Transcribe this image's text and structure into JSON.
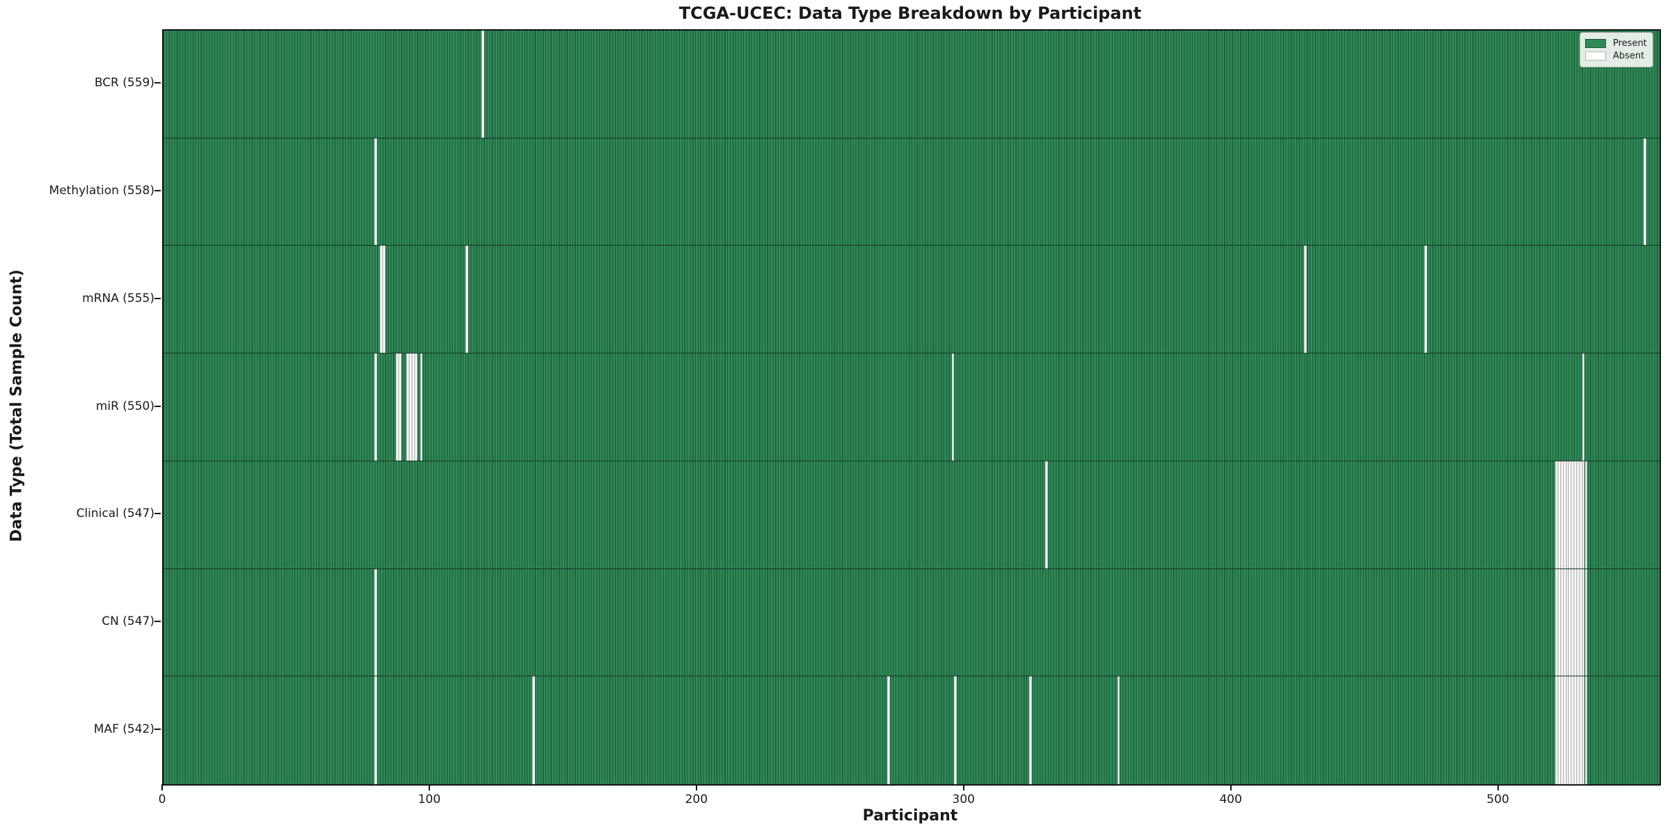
{
  "title": "TCGA-UCEC: Data Type Breakdown by Participant",
  "xlabel": "Participant",
  "ylabel": "Data Type (Total Sample Count)",
  "legend": {
    "present_label": "Present",
    "absent_label": "Absent"
  },
  "colors": {
    "present": "#2e8b57",
    "present_edge": "#1d5535",
    "absent": "#ffffff",
    "absent_edge": "#c9c9c9"
  },
  "chart_data": {
    "type": "heatmap",
    "title": "TCGA-UCEC: Data Type Breakdown by Participant",
    "xlabel": "Participant",
    "ylabel": "Data Type (Total Sample Count)",
    "legend_entries": [
      "Present",
      "Absent"
    ],
    "legend_position": "upper right",
    "n_participants": 560,
    "x_range": [
      0,
      560
    ],
    "x_ticks": [
      0,
      100,
      200,
      300,
      400,
      500
    ],
    "rows": [
      {
        "name": "BCR",
        "label": "BCR (559)",
        "total": 559,
        "absent_participants": [
          119
        ]
      },
      {
        "name": "Methylation",
        "label": "Methylation (558)",
        "total": 558,
        "absent_participants": [
          79,
          554
        ]
      },
      {
        "name": "mRNA",
        "label": "mRNA (555)",
        "total": 555,
        "absent_participants": [
          81,
          82,
          113,
          427,
          472
        ]
      },
      {
        "name": "miR",
        "label": "miR (550)",
        "total": 550,
        "absent_participants": [
          79,
          87,
          88,
          91,
          92,
          93,
          94,
          96,
          295,
          531
        ]
      },
      {
        "name": "Clinical",
        "label": "Clinical (547)",
        "total": 547,
        "absent_participants": [
          330,
          521,
          522,
          523,
          524,
          525,
          526,
          527,
          528,
          529,
          530,
          531,
          532
        ]
      },
      {
        "name": "CN",
        "label": "CN (547)",
        "total": 547,
        "absent_participants": [
          79,
          521,
          522,
          523,
          524,
          525,
          526,
          527,
          528,
          529,
          530,
          531,
          532
        ]
      },
      {
        "name": "MAF",
        "label": "MAF (542)",
        "total": 542,
        "absent_participants": [
          79,
          138,
          271,
          296,
          324,
          357,
          521,
          522,
          523,
          524,
          525,
          526,
          527,
          528,
          529,
          530,
          531,
          532
        ]
      }
    ]
  }
}
